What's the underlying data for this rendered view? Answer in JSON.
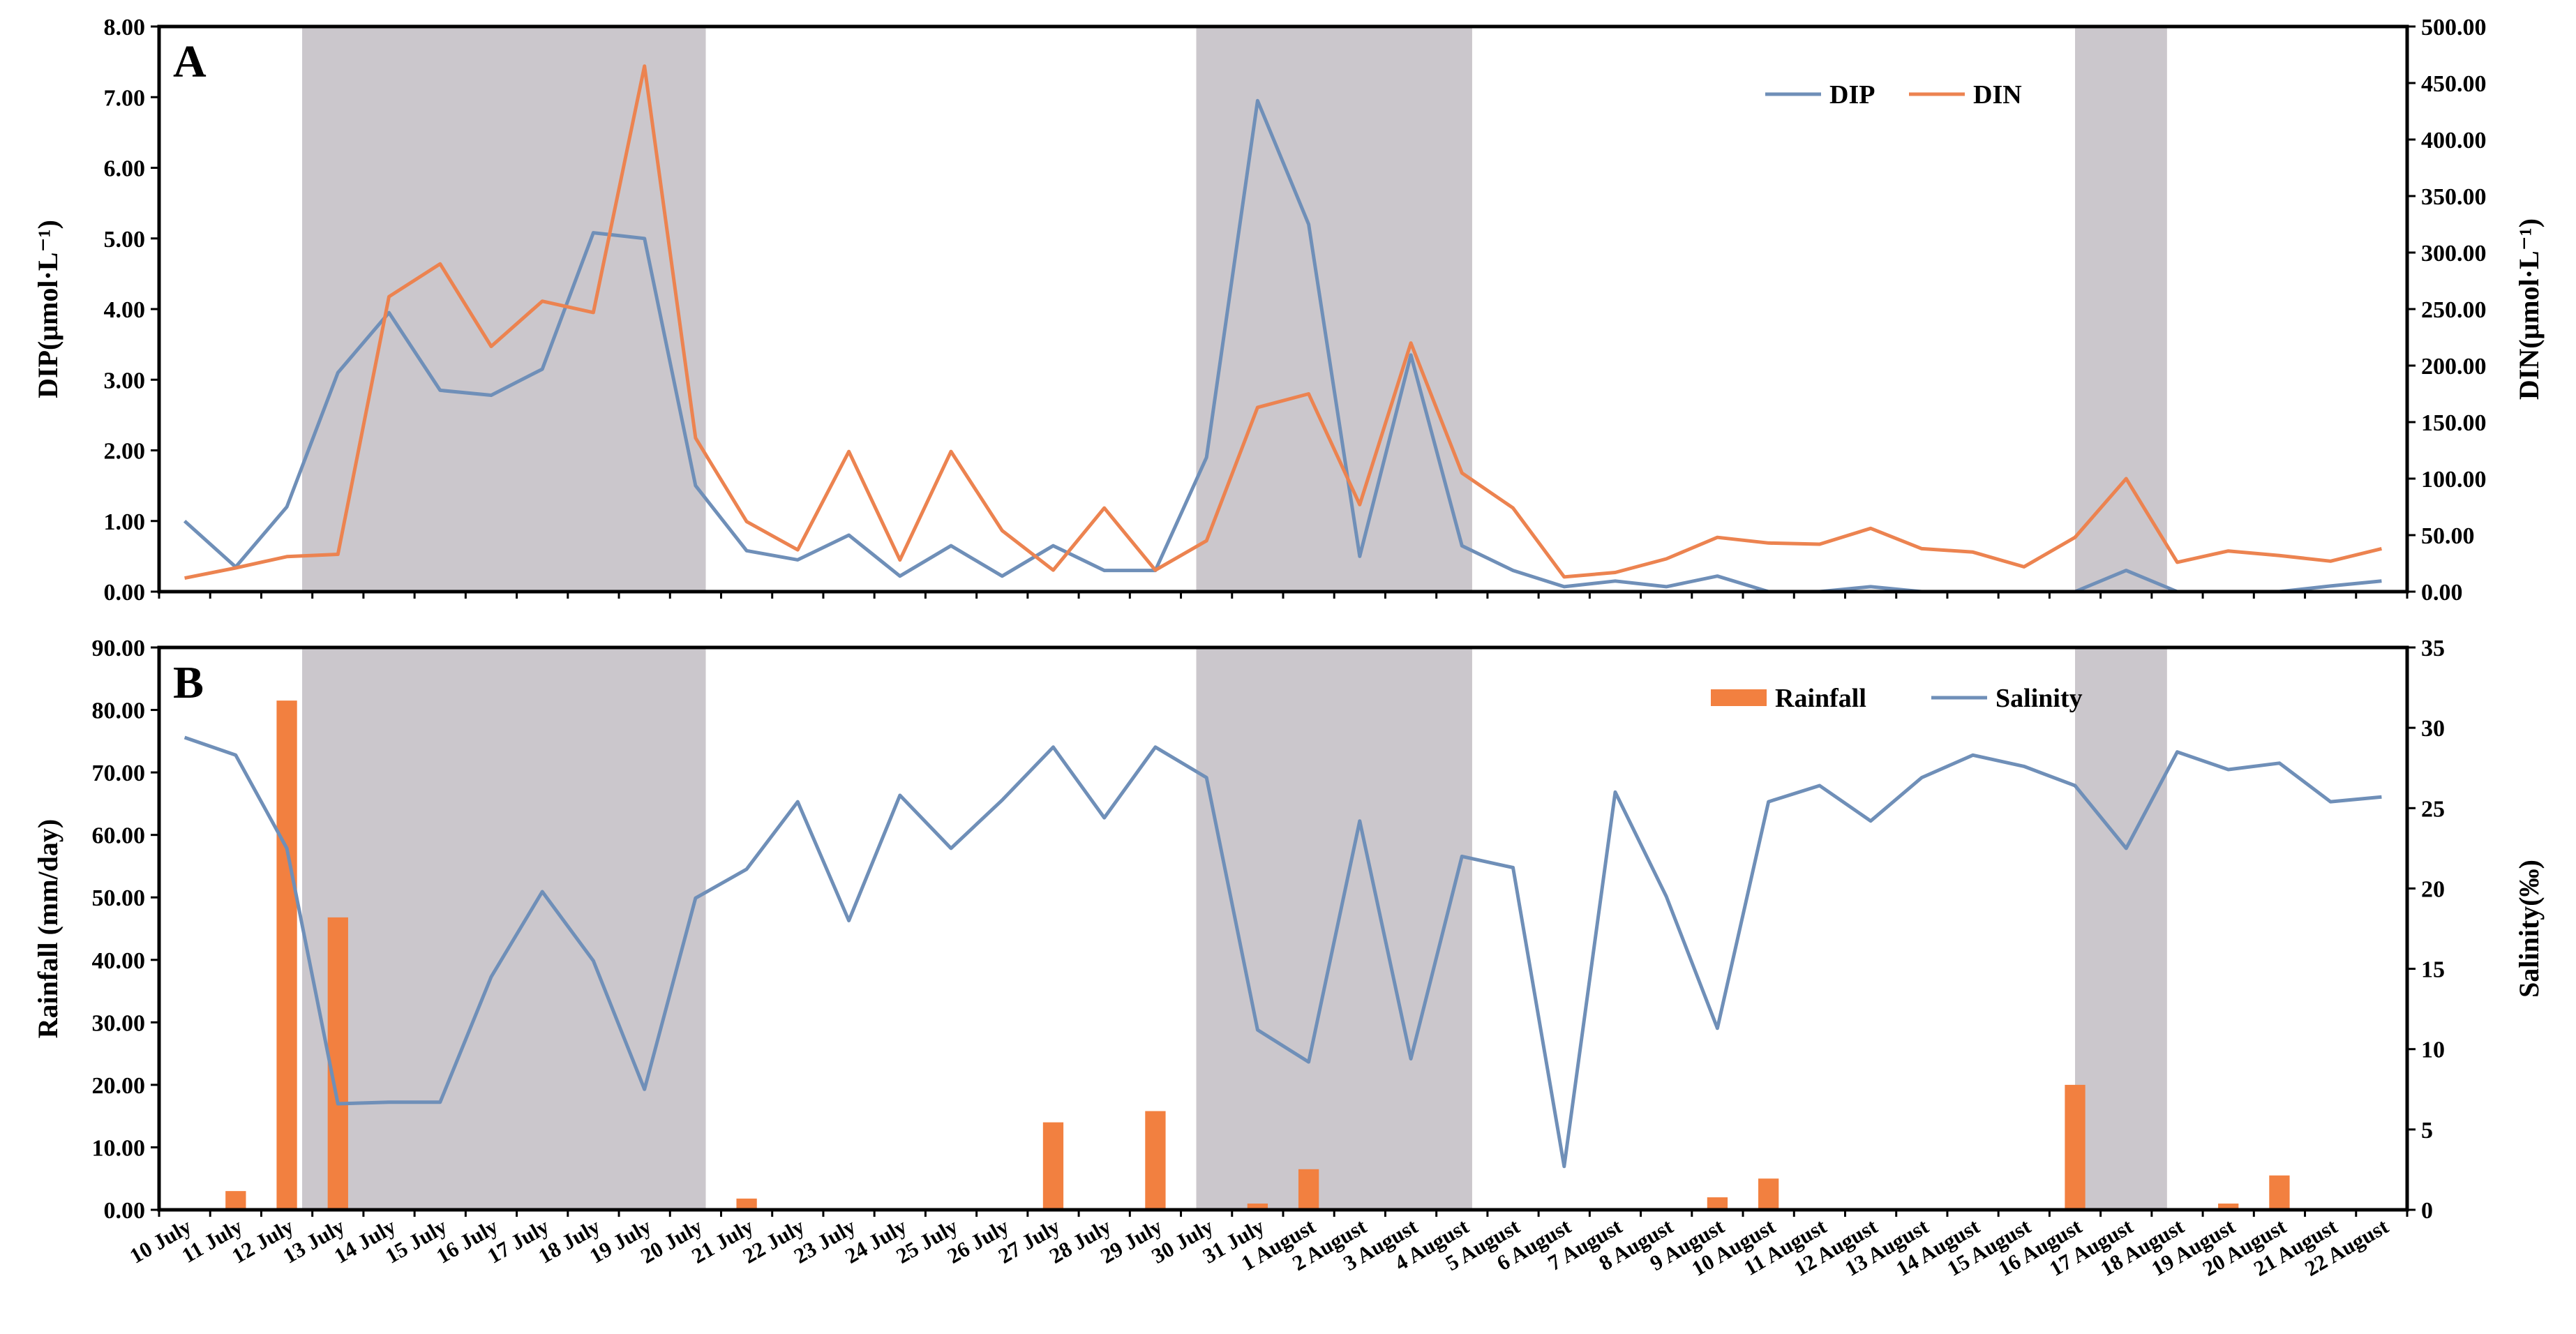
{
  "colors": {
    "dip": "#6f8fb8",
    "din": "#ec8350",
    "rainfall": "#f28040",
    "salinity": "#6f8fb8",
    "shade": "#cbc7cc"
  },
  "dates": [
    "10 July",
    "11 July",
    "12 July",
    "13 July",
    "14 July",
    "15 July",
    "16 July",
    "17 July",
    "18 July",
    "19 July",
    "20 July",
    "21 July",
    "22 July",
    "23 July",
    "24 July",
    "25 July",
    "26 July",
    "27 July",
    "28 July",
    "29 July",
    "30 July",
    "31 July",
    "1 August",
    "2 August",
    "3 August",
    "4 August",
    "5 August",
    "6 August",
    "7 August",
    "8 August",
    "9 August",
    "10 August",
    "11 August",
    "12 August",
    "13 August",
    "14 August",
    "15 August",
    "16 August",
    "17 August",
    "18 August",
    "19 August",
    "20 August",
    "21 August",
    "22 August"
  ],
  "shaded_periods": [
    [
      2.8,
      10.7
    ],
    [
      20.3,
      25.7
    ],
    [
      37.5,
      39.3
    ]
  ],
  "chart_data": [
    {
      "type": "line",
      "panel_label": "A",
      "ylabel": "DIP(μmol·L⁻¹)",
      "ylabel_right": "DIN(μmol·L⁻¹)",
      "ylim": [
        0,
        8
      ],
      "ylim_right": [
        0,
        500
      ],
      "yticks": [
        "0.00",
        "1.00",
        "2.00",
        "3.00",
        "4.00",
        "5.00",
        "6.00",
        "7.00",
        "8.00"
      ],
      "yticks_right": [
        "0.00",
        "50.00",
        "100.00",
        "150.00",
        "200.00",
        "250.00",
        "300.00",
        "350.00",
        "400.00",
        "450.00",
        "500.00"
      ],
      "legend_position": "top-right",
      "series": [
        {
          "name": "DIP",
          "axis": "left",
          "values": [
            1.0,
            0.35,
            1.2,
            3.1,
            3.95,
            2.85,
            2.78,
            3.15,
            5.08,
            5.0,
            1.5,
            0.58,
            0.45,
            0.8,
            0.22,
            0.65,
            0.22,
            0.65,
            0.3,
            0.3,
            1.9,
            6.95,
            5.2,
            0.5,
            3.35,
            0.65,
            0.3,
            0.07,
            0.15,
            0.07,
            0.22,
            0.0,
            0.0,
            0.07,
            0.0,
            0.0,
            0.0,
            0.0,
            0.3,
            0.0,
            0.0,
            0.0,
            0.08,
            0.15
          ]
        },
        {
          "name": "DIN",
          "axis": "right",
          "values": [
            12,
            21,
            31,
            33,
            261,
            290,
            217,
            257,
            247,
            465,
            136,
            62,
            37,
            124,
            28,
            124,
            54,
            19,
            74,
            19,
            45,
            163,
            175,
            77,
            220,
            105,
            74,
            13,
            17,
            29,
            48,
            43,
            42,
            56,
            38,
            35,
            22,
            48,
            100,
            26,
            36,
            32,
            27,
            38
          ]
        }
      ]
    },
    {
      "type": "bar",
      "panel_label": "B",
      "ylabel": "Rainfall (mm/day)",
      "ylabel_right": "Salinity(‰)",
      "ylim": [
        0,
        90
      ],
      "ylim_right": [
        0,
        35
      ],
      "yticks": [
        "0.00",
        "10.00",
        "20.00",
        "30.00",
        "40.00",
        "50.00",
        "60.00",
        "70.00",
        "80.00",
        "90.00"
      ],
      "yticks_right": [
        "0",
        "5",
        "10",
        "15",
        "20",
        "25",
        "30",
        "35"
      ],
      "legend_position": "top-right",
      "series": [
        {
          "name": "Rainfall",
          "axis": "left",
          "type": "bar",
          "values": [
            0,
            3,
            81.5,
            46.8,
            0,
            0,
            0,
            0,
            0,
            0,
            0,
            1.8,
            0,
            0,
            0,
            0,
            0,
            14,
            0,
            15.8,
            0,
            1,
            6.5,
            0,
            0,
            0,
            0,
            0,
            0,
            0,
            2,
            5,
            0,
            0,
            0,
            0,
            0,
            20,
            0,
            0,
            1,
            5.5,
            0,
            0
          ]
        },
        {
          "name": "Salinity",
          "axis": "right",
          "type": "line",
          "values": [
            29.4,
            28.3,
            22.5,
            6.6,
            6.7,
            6.7,
            14.5,
            19.8,
            15.5,
            7.5,
            19.4,
            21.2,
            25.4,
            18,
            25.8,
            22.5,
            25.5,
            28.8,
            24.4,
            28.8,
            26.9,
            11.2,
            9.2,
            24.2,
            9.4,
            22,
            21.3,
            2.7,
            26,
            19.5,
            11.3,
            25.4,
            26.4,
            24.2,
            26.9,
            28.3,
            27.6,
            26.4,
            22.5,
            28.5,
            27.4,
            27.8,
            25.4,
            25.7
          ]
        }
      ]
    }
  ]
}
